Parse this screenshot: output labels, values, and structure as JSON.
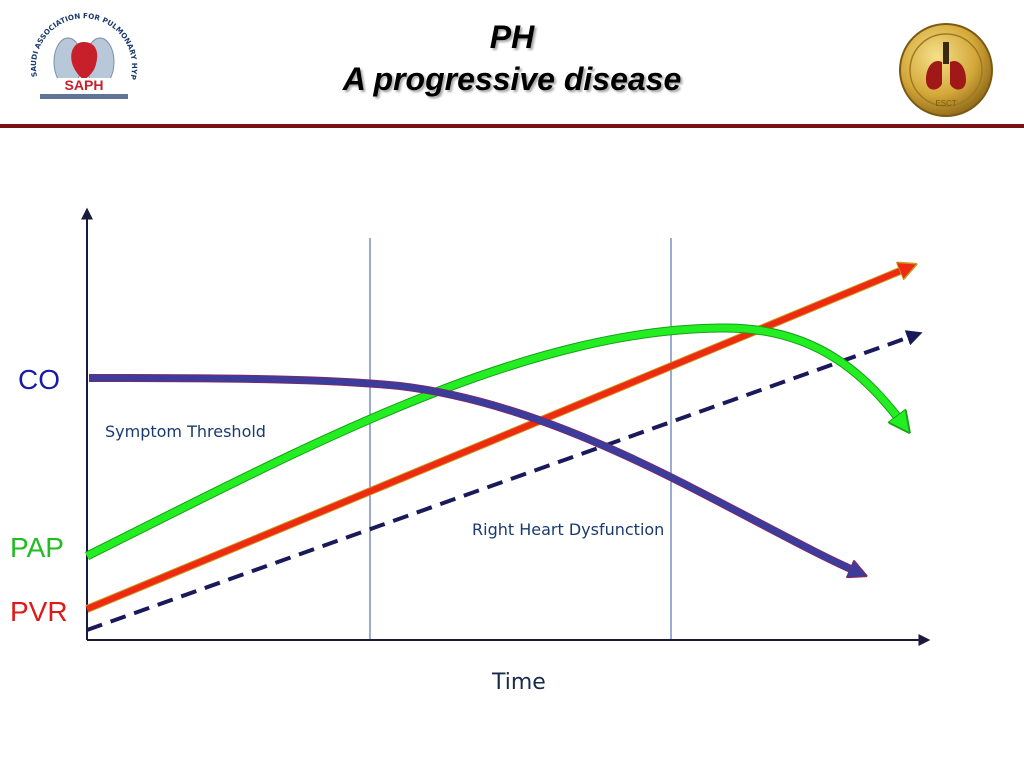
{
  "header": {
    "title_line1": "PH",
    "title_line2": "A progressive disease",
    "logo_left_text": "SAPH",
    "logo_left_ring_text": "SAUDI ASSOCIATION FOR PULMONARY HYPERTENSION",
    "logo_right_text": "ESCT"
  },
  "labels": {
    "co": "CO",
    "pap": "PAP",
    "pvr": "PVR",
    "symptom_threshold": "Symptom Threshold",
    "right_heart_dysfunction": "Right Heart Dysfunction",
    "x_axis": "Time"
  },
  "colors": {
    "co": "#3c3c9c",
    "pap": "#22ee22",
    "pvr": "#ee2a10",
    "dashed": "#1a1a5a",
    "axis": "#1a1a3a",
    "rule": "#7a1414",
    "divider": "#3a5aa0"
  },
  "icons": {
    "left_logo": "lungs-heart-logo",
    "right_logo": "lungs-medallion-logo"
  }
}
